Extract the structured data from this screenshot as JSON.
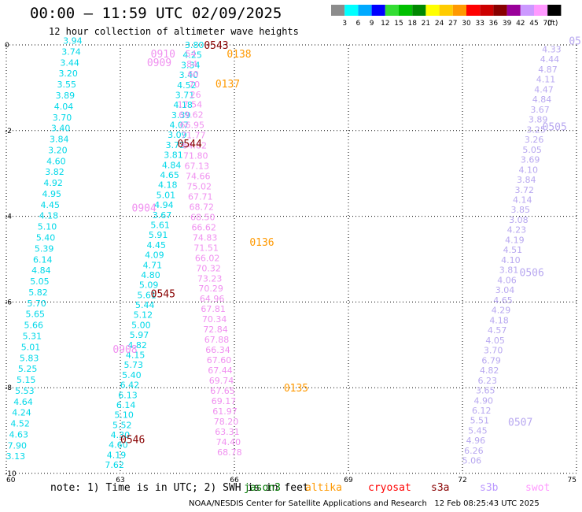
{
  "header": {
    "title": "00:00 – 11:59 UTC 02/09/2025",
    "subtitle": "12 hour collection of altimeter wave heights"
  },
  "legend": {
    "unit": "(ft)",
    "bins": [
      {
        "label": "3",
        "color": "#8c8c8c"
      },
      {
        "label": "6",
        "color": "#00ffff"
      },
      {
        "label": "9",
        "color": "#00aaff"
      },
      {
        "label": "12",
        "color": "#0000ff"
      },
      {
        "label": "15",
        "color": "#33dd33"
      },
      {
        "label": "18",
        "color": "#00c000"
      },
      {
        "label": "21",
        "color": "#008800"
      },
      {
        "label": "24",
        "color": "#ffff00"
      },
      {
        "label": "27",
        "color": "#ffcc00"
      },
      {
        "label": "30",
        "color": "#ff9900"
      },
      {
        "label": "33",
        "color": "#ff0000"
      },
      {
        "label": "36",
        "color": "#cc0000"
      },
      {
        "label": "39",
        "color": "#880000"
      },
      {
        "label": "42",
        "color": "#990099"
      },
      {
        "label": "45",
        "color": "#cc99ff"
      },
      {
        "label": "70",
        "color": "#ff99ff"
      },
      {
        "label": "",
        "color": "#000000"
      }
    ]
  },
  "note": {
    "text": "note: 1) Time is in UTC; 2) SWH is in feet",
    "missions": [
      {
        "name": "jason3",
        "color": "#007700"
      },
      {
        "name": "altika",
        "color": "#ff9900"
      },
      {
        "name": "cryosat",
        "color": "#ff0000"
      },
      {
        "name": "s3a",
        "color": "#880000"
      },
      {
        "name": "s3b",
        "color": "#bb99ff"
      },
      {
        "name": "swot",
        "color": "#ff99ff"
      }
    ]
  },
  "footer": "NOAA/NESDIS Center for Satellite Applications and Research   12 Feb 08:25:43 UTC 2025",
  "colors": {
    "cyan_track": "#00d8e8",
    "pink_track": "#f090f0",
    "lavender_track": "#b8a8f0",
    "altika": "#ff9900",
    "s3a": "#880000",
    "grid": "#000000"
  },
  "chart_data": {
    "type": "scatter",
    "xlim": [
      60,
      75
    ],
    "ylim": [
      -10,
      0
    ],
    "x_ticks": [
      "60",
      "63",
      "66",
      "69",
      "72",
      "75"
    ],
    "y_ticks": [
      "0",
      "-2",
      "-4",
      "-6",
      "-8",
      "-10"
    ],
    "grid": true,
    "tracks": [
      {
        "name": "cyan_left",
        "color_key": "cyan_track",
        "start": [
          62.0,
          0.1
        ],
        "end": [
          60.5,
          -9.6
        ],
        "values": [
          "3.94",
          "3.74",
          "3.44",
          "3.20",
          "3.55",
          "3.89",
          "4.04",
          "3.70",
          "3.40",
          "3.84",
          "3.20",
          "4.60",
          "3.82",
          "4.92",
          "4.95",
          "4.45",
          "4.18",
          "5.10",
          "5.40",
          "5.39",
          "6.14",
          "4.84",
          "5.05",
          "5.82",
          "5.70",
          "5.65",
          "5.66",
          "5.31",
          "5.01",
          "5.83",
          "5.25",
          "5.15",
          "5.53",
          "4.64",
          "4.24",
          "4.52",
          "4.63",
          "7.90",
          "3.13"
        ]
      },
      {
        "name": "cyan_mid",
        "color_key": "cyan_track",
        "start": [
          65.2,
          0.0
        ],
        "end": [
          63.1,
          -9.8
        ],
        "values": [
          "3.80",
          "4.25",
          "3.34",
          "3.40",
          "4.52",
          "3.71",
          "4.18",
          "3.39",
          "4.07",
          "3.09",
          "3.73",
          "3.81",
          "4.84",
          "4.65",
          "4.18",
          "5.01",
          "4.94",
          "3.67",
          "5.61",
          "5.91",
          "4.45",
          "4.09",
          "4.71",
          "4.80",
          "5.09",
          "5.61",
          "5.44",
          "5.12",
          "5.00",
          "5.97",
          "4.82",
          "4.15",
          "5.73",
          "5.40",
          "6.42",
          "6.13",
          "6.14",
          "5.10",
          "5.52",
          "4.30",
          "4.60",
          "4.19",
          "7.62"
        ]
      },
      {
        "name": "pink_swot",
        "color_key": "pink_track",
        "start": [
          65.0,
          -0.2
        ],
        "end": [
          66.2,
          -9.5
        ],
        "values": [
          "54",
          "84",
          "60",
          "70",
          "26",
          "17.54",
          "69.62",
          "66.95",
          "71.77",
          "64.82",
          "71.80",
          "67.13",
          "74.66",
          "75.02",
          "67.71",
          "68.72",
          "68.50",
          "66.62",
          "74.83",
          "71.51",
          "66.02",
          "70.32",
          "73.23",
          "70.29",
          "64.96",
          "67.81",
          "70.34",
          "72.84",
          "67.88",
          "66.34",
          "67.60",
          "67.44",
          "69.74",
          "67.65",
          "69.17",
          "61.97",
          "78.20",
          "63.31",
          "74.40",
          "68.78"
        ]
      },
      {
        "name": "lavender_right",
        "color_key": "lavender_track",
        "start": [
          74.6,
          -0.1
        ],
        "end": [
          72.5,
          -9.7
        ],
        "values": [
          "4.33",
          "4.44",
          "4.87",
          "4.11",
          "4.47",
          "4.84",
          "3.67",
          "3.89",
          "3.25",
          "3.26",
          "5.05",
          "3.69",
          "4.10",
          "3.84",
          "3.72",
          "4.14",
          "3.85",
          "3.08",
          "4.23",
          "4.19",
          "4.51",
          "4.10",
          "3.81",
          "4.06",
          "3.04",
          "4.65",
          "4.29",
          "4.18",
          "4.57",
          "4.05",
          "3.70",
          "6.79",
          "4.82",
          "6.23",
          "3.65",
          "4.90",
          "6.12",
          "5.51",
          "5.45",
          "4.96",
          "6.26",
          "5.06"
        ]
      }
    ],
    "time_labels": [
      {
        "text": "0543",
        "x": 65.2,
        "y": 0.0,
        "color_key": "s3a"
      },
      {
        "text": "0138",
        "x": 65.8,
        "y": -0.2,
        "color_key": "altika"
      },
      {
        "text": "0137",
        "x": 65.5,
        "y": -0.9,
        "color_key": "altika"
      },
      {
        "text": "0544",
        "x": 64.5,
        "y": -2.3,
        "color_key": "s3a"
      },
      {
        "text": "0136",
        "x": 66.4,
        "y": -4.6,
        "color_key": "altika"
      },
      {
        "text": "0545",
        "x": 63.8,
        "y": -5.8,
        "color_key": "s3a"
      },
      {
        "text": "0135",
        "x": 67.3,
        "y": -8.0,
        "color_key": "altika"
      },
      {
        "text": "0546",
        "x": 63.0,
        "y": -9.2,
        "color_key": "s3a"
      },
      {
        "text": "0910",
        "x": 63.8,
        "y": -0.2,
        "color_key": "pink_track"
      },
      {
        "text": "0909",
        "x": 63.7,
        "y": -0.4,
        "color_key": "pink_track"
      },
      {
        "text": "0904",
        "x": 63.3,
        "y": -3.8,
        "color_key": "pink_track"
      },
      {
        "text": "0908",
        "x": 62.8,
        "y": -7.1,
        "color_key": "pink_track"
      },
      {
        "text": "0505",
        "x": 74.1,
        "y": -1.9,
        "color_key": "lavender_track"
      },
      {
        "text": "0506",
        "x": 73.5,
        "y": -5.3,
        "color_key": "lavender_track"
      },
      {
        "text": "0507",
        "x": 73.2,
        "y": -8.8,
        "color_key": "lavender_track"
      },
      {
        "text": "05",
        "x": 74.8,
        "y": 0.1,
        "color_key": "lavender_track"
      }
    ]
  }
}
